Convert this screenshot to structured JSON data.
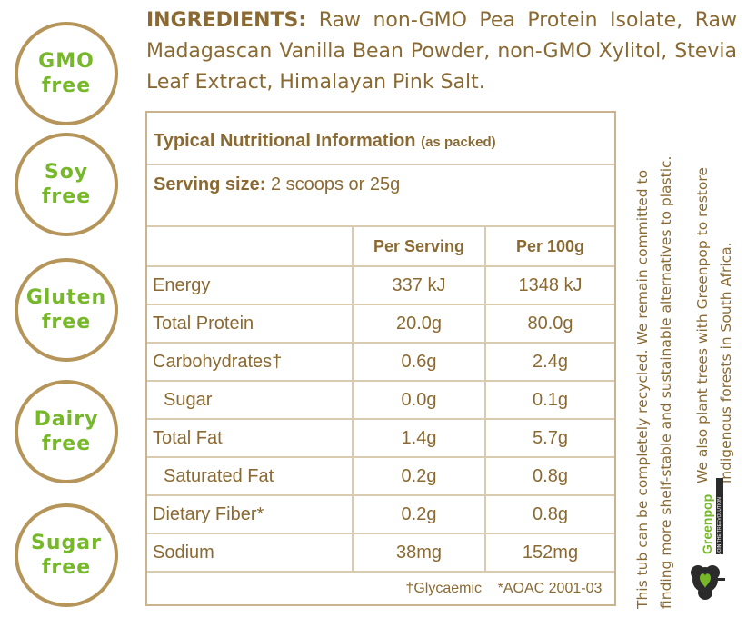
{
  "badges": [
    {
      "line1": "GMO",
      "line2": "free"
    },
    {
      "line1": "Soy",
      "line2": "free"
    },
    {
      "line1": "Gluten",
      "line2": "free"
    },
    {
      "line1": "Dairy",
      "line2": "free"
    },
    {
      "line1": "Sugar",
      "line2": "free"
    }
  ],
  "ingredients": {
    "label": "INGREDIENTS:",
    "text": "Raw non-GMO Pea Protein Isolate, Raw Madagascan Vanilla Bean Powder, non-GMO Xylitol, Stevia Leaf Extract, Himalayan Pink Salt."
  },
  "nutrition": {
    "title": "Typical Nutritional Information",
    "title_note": "(as packed)",
    "serving_label": "Serving size:",
    "serving_value": "2 scoops or 25g",
    "col_headers": [
      "",
      "Per Serving",
      "Per 100g"
    ],
    "rows": [
      {
        "name": "Energy",
        "per_serving": "337 kJ",
        "per_100g": "1348 kJ"
      },
      {
        "name": "Total Protein",
        "per_serving": "20.0g",
        "per_100g": "80.0g"
      },
      {
        "name": "Carbohydrates†",
        "per_serving": "0.6g",
        "per_100g": "2.4g"
      },
      {
        "name": "Sugar",
        "per_serving": "0.0g",
        "per_100g": "0.1g"
      },
      {
        "name": "Total Fat",
        "per_serving": "1.4g",
        "per_100g": "5.7g"
      },
      {
        "name": "Saturated Fat",
        "per_serving": "0.2g",
        "per_100g": "0.8g"
      },
      {
        "name": "Dietary Fiber*",
        "per_serving": "0.2g",
        "per_100g": "0.8g"
      },
      {
        "name": "Sodium",
        "per_serving": "38mg",
        "per_100g": "152mg"
      }
    ],
    "footnote_1": "†Glycaemic",
    "footnote_2": "*AOAC 2001-03"
  },
  "side_text": {
    "recycle_line1": "This tub can be completely recycled. We remain committed to",
    "recycle_line2": "finding more shelf-stable and sustainable alternatives to plastic.",
    "greenpop_line1": "We also plant trees with Greenpop to restore",
    "greenpop_line2": "indigenous forests in South Africa."
  },
  "greenpop_logo": {
    "name": "Greenpop",
    "tagline": "JOIN THE TREEVOLUTION"
  },
  "colors": {
    "badge_text": "#76b82a",
    "badge_ring": "#b5955a",
    "text": "#8a6a32",
    "rule": "#d9cbb0"
  }
}
